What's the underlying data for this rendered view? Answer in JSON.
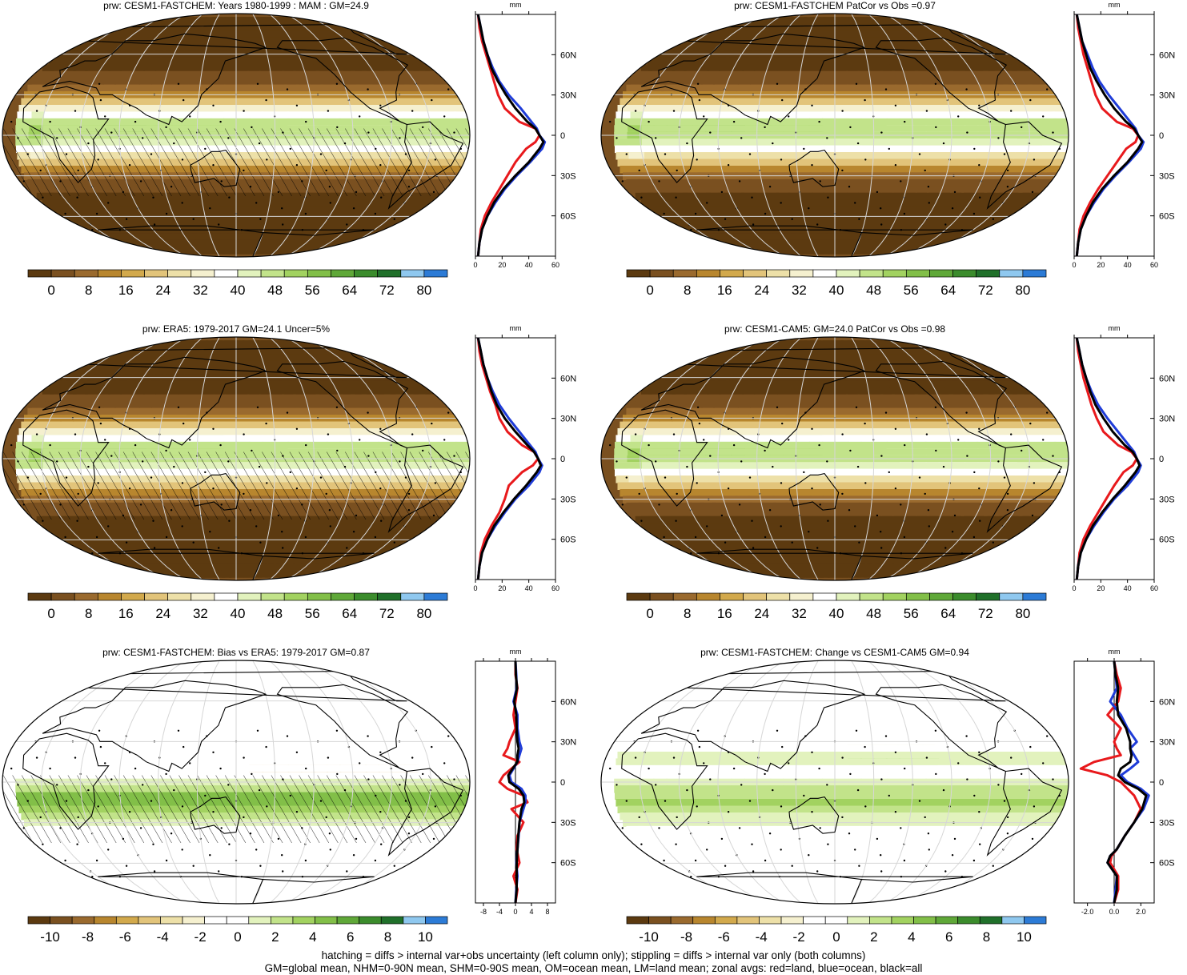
{
  "footer": {
    "line1": "hatching = diffs > internal var+obs uncertainty (left column only); stippling = diffs > internal var only (both columns)",
    "line2": "GM=global mean, NHM=0-90N mean, SHM=0-90S mean, OM=ocean mean, LM=land mean; zonal avgs: red=land, blue=ocean, black=all"
  },
  "colors": {
    "land": "#e8191c",
    "ocean": "#1f3cd8",
    "all": "#000000",
    "climatology_scale": [
      "#5c3a10",
      "#7a5020",
      "#9a6a2e",
      "#b8862e",
      "#d2a94c",
      "#e2c47a",
      "#ede0a8",
      "#f5f0cf",
      "#ffffff",
      "#e2f2bd",
      "#c2e38a",
      "#a2d260",
      "#82bf48",
      "#5fa838",
      "#3b8c2c",
      "#20702a",
      "#8fc8ef",
      "#2c7bd6"
    ],
    "anomaly_scale": [
      "#5c3a10",
      "#7a5020",
      "#9a6a2e",
      "#b8862e",
      "#d2a94c",
      "#e2c47a",
      "#ede0a8",
      "#f5f0cf",
      "#ffffff",
      "#ffffff",
      "#e2f2bd",
      "#c2e38a",
      "#a2d260",
      "#82bf48",
      "#5fa838",
      "#3b8c2c",
      "#20702a",
      "#8fc8ef",
      "#2c7bd6"
    ]
  },
  "panels": [
    {
      "title": "prw: CESM1-FASTCHEM: Years 1980-1999 : MAM : GM=24.9",
      "kind": "clim",
      "hatched": true,
      "stippled": true,
      "colorbar": {
        "labels": [
          "0",
          "8",
          "16",
          "24",
          "32",
          "40",
          "48",
          "56",
          "64",
          "72",
          "80"
        ]
      }
    },
    {
      "title": "prw: CESM1-FASTCHEM PatCor vs Obs =0.97",
      "kind": "clim",
      "hatched": false,
      "stippled": true,
      "colorbar": {
        "labels": [
          "0",
          "8",
          "16",
          "24",
          "32",
          "40",
          "48",
          "56",
          "64",
          "72",
          "80"
        ]
      }
    },
    {
      "title": "prw: ERA5: 1979-2017 GM=24.1 Uncer=5%",
      "kind": "clim",
      "hatched": true,
      "stippled": true,
      "colorbar": {
        "labels": [
          "0",
          "8",
          "16",
          "24",
          "32",
          "40",
          "48",
          "56",
          "64",
          "72",
          "80"
        ]
      }
    },
    {
      "title": "prw: CESM1-CAM5: GM=24.0 PatCor vs Obs =0.98",
      "kind": "clim",
      "hatched": false,
      "stippled": true,
      "colorbar": {
        "labels": [
          "0",
          "8",
          "16",
          "24",
          "32",
          "40",
          "48",
          "56",
          "64",
          "72",
          "80"
        ]
      }
    },
    {
      "title": "prw: CESM1-FASTCHEM: Bias vs ERA5: 1979-2017 GM=0.87",
      "kind": "bias",
      "hatched": true,
      "stippled": true,
      "colorbar": {
        "labels": [
          "-10",
          "-8",
          "-6",
          "-4",
          "-2",
          "0",
          "2",
          "4",
          "6",
          "8",
          "10"
        ]
      }
    },
    {
      "title": "prw: CESM1-FASTCHEM: Change vs CESM1-CAM5 GM=0.94",
      "kind": "change",
      "hatched": false,
      "stippled": true,
      "colorbar": {
        "labels": [
          "-10",
          "-8",
          "-6",
          "-4",
          "-2",
          "0",
          "2",
          "4",
          "6",
          "8",
          "10"
        ]
      }
    }
  ],
  "chart_data": [
    {
      "type": "line",
      "title": "",
      "xlabel": "mm",
      "ylabel": "",
      "xlim": [
        0,
        60
      ],
      "ylim": [
        -90,
        90
      ],
      "x_ticks": [
        "0",
        "20",
        "40",
        "60"
      ],
      "y_ticks": [
        "60N",
        "30N",
        "0",
        "30S",
        "60S"
      ],
      "lat": [
        -90,
        -80,
        -70,
        -60,
        -50,
        -40,
        -30,
        -20,
        -10,
        -5,
        0,
        5,
        10,
        20,
        30,
        40,
        50,
        60,
        70,
        80,
        90
      ],
      "series": [
        {
          "color_key": "land",
          "values": [
            2,
            3,
            4,
            7,
            12,
            18,
            24,
            30,
            38,
            45,
            48,
            45,
            33,
            22,
            17,
            14,
            11,
            8,
            5,
            3,
            2
          ]
        },
        {
          "color_key": "ocean",
          "values": [
            2,
            3,
            5,
            9,
            15,
            22,
            31,
            41,
            50,
            52,
            48,
            46,
            42,
            34,
            25,
            18,
            13,
            9,
            6,
            4,
            2
          ]
        },
        {
          "color_key": "all",
          "values": [
            2,
            3,
            5,
            9,
            14,
            21,
            30,
            40,
            48,
            51,
            48,
            45,
            39,
            30,
            23,
            17,
            12,
            9,
            6,
            4,
            2
          ]
        }
      ]
    },
    {
      "type": "line",
      "title": "",
      "xlabel": "mm",
      "ylabel": "",
      "xlim": [
        0,
        60
      ],
      "ylim": [
        -90,
        90
      ],
      "x_ticks": [
        "0",
        "20",
        "40",
        "60"
      ],
      "y_ticks": [
        "60N",
        "30N",
        "0",
        "30S",
        "60S"
      ],
      "lat": [
        -90,
        -80,
        -70,
        -60,
        -50,
        -40,
        -30,
        -20,
        -10,
        -5,
        0,
        5,
        10,
        20,
        30,
        40,
        50,
        60,
        70,
        80,
        90
      ],
      "series": [
        {
          "color_key": "land",
          "values": [
            2,
            3,
            4,
            7,
            12,
            18,
            25,
            32,
            39,
            46,
            48,
            44,
            32,
            21,
            16,
            13,
            10,
            7,
            5,
            3,
            2
          ]
        },
        {
          "color_key": "ocean",
          "values": [
            2,
            3,
            5,
            9,
            15,
            22,
            31,
            41,
            50,
            52,
            48,
            46,
            42,
            34,
            26,
            19,
            14,
            10,
            6,
            4,
            2
          ]
        },
        {
          "color_key": "all",
          "values": [
            2,
            3,
            5,
            9,
            14,
            21,
            30,
            40,
            48,
            51,
            48,
            45,
            39,
            30,
            23,
            17,
            12,
            9,
            6,
            4,
            2
          ]
        }
      ]
    },
    {
      "type": "line",
      "title": "",
      "xlabel": "mm",
      "ylabel": "",
      "xlim": [
        0,
        60
      ],
      "ylim": [
        -90,
        90
      ],
      "x_ticks": [
        "0",
        "20",
        "40",
        "60"
      ],
      "y_ticks": [
        "60N",
        "30N",
        "0",
        "30S",
        "60S"
      ],
      "lat": [
        -90,
        -80,
        -70,
        -60,
        -50,
        -40,
        -30,
        -20,
        -10,
        -5,
        0,
        5,
        10,
        20,
        30,
        40,
        50,
        60,
        70,
        80,
        90
      ],
      "series": [
        {
          "color_key": "land",
          "values": [
            2,
            3,
            4,
            7,
            12,
            18,
            22,
            25,
            35,
            43,
            47,
            44,
            35,
            24,
            18,
            15,
            11,
            8,
            5,
            3,
            2
          ]
        },
        {
          "color_key": "ocean",
          "values": [
            2,
            3,
            5,
            9,
            15,
            22,
            30,
            40,
            48,
            50,
            47,
            45,
            41,
            33,
            25,
            18,
            13,
            9,
            6,
            4,
            2
          ]
        },
        {
          "color_key": "all",
          "values": [
            2,
            3,
            5,
            9,
            14,
            21,
            29,
            38,
            46,
            49,
            47,
            44,
            39,
            30,
            22,
            16,
            12,
            9,
            6,
            4,
            2
          ]
        }
      ]
    },
    {
      "type": "line",
      "title": "",
      "xlabel": "mm",
      "ylabel": "",
      "xlim": [
        0,
        60
      ],
      "ylim": [
        -90,
        90
      ],
      "x_ticks": [
        "0",
        "20",
        "40",
        "60"
      ],
      "y_ticks": [
        "60N",
        "30N",
        "0",
        "30S",
        "60S"
      ],
      "lat": [
        -90,
        -80,
        -70,
        -60,
        -50,
        -40,
        -30,
        -20,
        -10,
        -5,
        0,
        5,
        10,
        20,
        30,
        40,
        50,
        60,
        70,
        80,
        90
      ],
      "series": [
        {
          "color_key": "land",
          "values": [
            2,
            3,
            4,
            7,
            12,
            18,
            24,
            30,
            37,
            44,
            47,
            43,
            33,
            22,
            17,
            13,
            10,
            7,
            5,
            3,
            2
          ]
        },
        {
          "color_key": "ocean",
          "values": [
            2,
            3,
            5,
            9,
            15,
            22,
            30,
            40,
            48,
            50,
            47,
            45,
            41,
            33,
            25,
            18,
            13,
            9,
            6,
            4,
            2
          ]
        },
        {
          "color_key": "all",
          "values": [
            2,
            3,
            5,
            9,
            14,
            21,
            29,
            38,
            46,
            49,
            47,
            44,
            38,
            29,
            22,
            16,
            12,
            9,
            6,
            4,
            2
          ]
        }
      ]
    },
    {
      "type": "line",
      "title": "",
      "xlabel": "mm",
      "ylabel": "",
      "xlim": [
        -10,
        10
      ],
      "ylim": [
        -90,
        90
      ],
      "x_ticks": [
        "-8",
        "-4",
        "0",
        "4",
        "8"
      ],
      "y_ticks": [
        "60N",
        "30N",
        "0",
        "30S",
        "60S"
      ],
      "lat": [
        -90,
        -80,
        -70,
        -60,
        -50,
        -40,
        -30,
        -20,
        -15,
        -10,
        -5,
        0,
        5,
        10,
        15,
        20,
        25,
        30,
        40,
        50,
        60,
        70,
        80,
        90
      ],
      "series": [
        {
          "color_key": "land",
          "values": [
            0,
            0.5,
            -0.5,
            1,
            0.3,
            0.5,
            2,
            -1,
            3,
            2,
            -2,
            -4,
            -3,
            -1,
            1,
            -3,
            -2,
            -1.5,
            0,
            -0.5,
            0,
            0.5,
            0,
            0
          ]
        },
        {
          "color_key": "ocean",
          "values": [
            0,
            0.2,
            0.5,
            0.2,
            0.5,
            0.8,
            1,
            2,
            2.5,
            2.5,
            1.5,
            -1,
            -1.5,
            -0.5,
            0.5,
            1,
            1.5,
            1,
            0.5,
            0.5,
            -0.5,
            0.3,
            0.2,
            0
          ]
        },
        {
          "color_key": "all",
          "values": [
            0,
            0.3,
            0.3,
            0.3,
            0.5,
            0.7,
            1,
            1.5,
            2.2,
            2,
            0.8,
            -1.5,
            -1.8,
            -0.7,
            0.5,
            0.5,
            0.8,
            0.5,
            0.3,
            0.2,
            -0.3,
            0.4,
            0.1,
            0
          ]
        }
      ]
    },
    {
      "type": "line",
      "title": "",
      "xlabel": "mm",
      "ylabel": "",
      "xlim": [
        -3,
        3
      ],
      "ylim": [
        -90,
        90
      ],
      "x_ticks": [
        "-2.0",
        "0.0",
        "2.0"
      ],
      "y_ticks": [
        "60N",
        "30N",
        "0",
        "30S",
        "60S"
      ],
      "lat": [
        -90,
        -80,
        -70,
        -60,
        -55,
        -50,
        -40,
        -30,
        -20,
        -10,
        -5,
        0,
        5,
        10,
        15,
        20,
        25,
        30,
        40,
        50,
        60,
        70,
        80,
        90
      ],
      "series": [
        {
          "color_key": "land",
          "values": [
            0,
            0.3,
            0.3,
            -0.3,
            -0.2,
            0.2,
            0.8,
            1.5,
            2,
            1.5,
            1,
            0.5,
            -0.5,
            -2.5,
            -1.5,
            0.5,
            0.2,
            0,
            0.5,
            -0.5,
            0.3,
            0.5,
            0.2,
            0
          ]
        },
        {
          "color_key": "ocean",
          "values": [
            0,
            0.1,
            0.2,
            -0.5,
            -0.3,
            0.2,
            0.8,
            1.5,
            2.2,
            2.6,
            2,
            1,
            0.5,
            1.2,
            1.8,
            1.5,
            1.2,
            1.7,
            1,
            0.5,
            -0.3,
            0.2,
            0.1,
            0
          ]
        },
        {
          "color_key": "all",
          "values": [
            0,
            0.2,
            0.2,
            -0.5,
            -0.3,
            0.2,
            0.8,
            1.5,
            2.1,
            2.4,
            1.8,
            0.8,
            0.3,
            0.5,
            1.2,
            1.3,
            1.2,
            1.2,
            0.9,
            0.3,
            0.2,
            0.3,
            0.1,
            0
          ]
        }
      ]
    }
  ]
}
